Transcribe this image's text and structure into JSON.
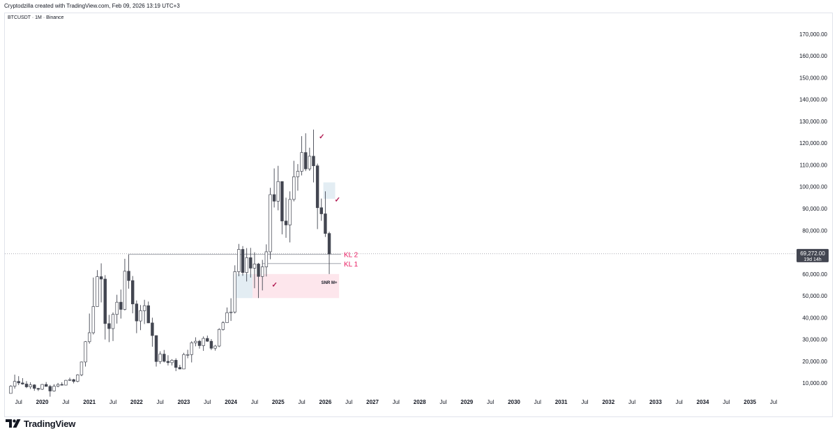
{
  "header": {
    "attribution": "Cryptodzilla created with TradingView.com, Feb 09, 2026 13:19 UTC+3",
    "symbol": "BTCUSDT · 1M · Binance"
  },
  "footer": {
    "brand": "TradingView",
    "logo_icon": "tradingview-logo-icon"
  },
  "colors": {
    "bull_body": "#ffffff",
    "bear_body": "#434651",
    "wick": "#434651",
    "zone_pink": "#fde6ec",
    "zone_blue": "#e3edf3",
    "kl_label": "#e91e63",
    "level_line": "#9598a1",
    "price_tag_bg": "#434651"
  },
  "price_axis": {
    "labels": [
      "170,000.00",
      "160,000.00",
      "150,000.00",
      "140,000.00",
      "130,000.00",
      "120,000.00",
      "110,000.00",
      "100,000.00",
      "90,000.00",
      "80,000.00",
      "60,000.00",
      "50,000.00",
      "40,000.00",
      "30,000.00",
      "20,000.00",
      "10,000.00"
    ],
    "current_price": "69,272.00",
    "countdown": "19d 14h"
  },
  "annotations": {
    "kl2": "KL 2",
    "kl1": "KL 1",
    "snr": "SNR M+",
    "check": "✓"
  },
  "chart_data": {
    "type": "candlestick",
    "ylim": [
      4000,
      176000
    ],
    "time_axis": {
      "start": "2019-04",
      "end": "2035-12",
      "labels": [
        {
          "t": "2019-07",
          "label": "Jul"
        },
        {
          "t": "2020-01",
          "label": "2020"
        },
        {
          "t": "2020-07",
          "label": "Jul"
        },
        {
          "t": "2021-01",
          "label": "2021"
        },
        {
          "t": "2021-07",
          "label": "Jul"
        },
        {
          "t": "2022-01",
          "label": "2022"
        },
        {
          "t": "2022-07",
          "label": "Jul"
        },
        {
          "t": "2023-01",
          "label": "2023"
        },
        {
          "t": "2023-07",
          "label": "Jul"
        },
        {
          "t": "2024-01",
          "label": "2024"
        },
        {
          "t": "2024-07",
          "label": "Jul"
        },
        {
          "t": "2025-01",
          "label": "2025"
        },
        {
          "t": "2025-07",
          "label": "Jul"
        },
        {
          "t": "2026-01",
          "label": "2026"
        },
        {
          "t": "2026-07",
          "label": "Jul"
        },
        {
          "t": "2027-01",
          "label": "2027"
        },
        {
          "t": "2027-07",
          "label": "Jul"
        },
        {
          "t": "2028-01",
          "label": "2028"
        },
        {
          "t": "2028-07",
          "label": "Jul"
        },
        {
          "t": "2029-01",
          "label": "2029"
        },
        {
          "t": "2029-07",
          "label": "Jul"
        },
        {
          "t": "2030-01",
          "label": "2030"
        },
        {
          "t": "2030-07",
          "label": "Jul"
        },
        {
          "t": "2031-01",
          "label": "2031"
        },
        {
          "t": "2031-07",
          "label": "Jul"
        },
        {
          "t": "2032-01",
          "label": "2032"
        },
        {
          "t": "2032-07",
          "label": "Jul"
        },
        {
          "t": "2033-01",
          "label": "2033"
        },
        {
          "t": "2033-07",
          "label": "Jul"
        },
        {
          "t": "2034-01",
          "label": "2034"
        },
        {
          "t": "2034-07",
          "label": "Jul"
        },
        {
          "t": "2035-01",
          "label": "2035"
        },
        {
          "t": "2035-07",
          "label": "Jul"
        }
      ]
    },
    "candles": [
      {
        "t": "2019-05",
        "o": 5300,
        "h": 9000,
        "l": 5300,
        "c": 8600
      },
      {
        "t": "2019-06",
        "o": 8600,
        "h": 13900,
        "l": 7500,
        "c": 10800
      },
      {
        "t": "2019-07",
        "o": 10800,
        "h": 13200,
        "l": 9100,
        "c": 10100
      },
      {
        "t": "2019-08",
        "o": 10100,
        "h": 12300,
        "l": 9300,
        "c": 9600
      },
      {
        "t": "2019-09",
        "o": 9600,
        "h": 10900,
        "l": 7700,
        "c": 8300
      },
      {
        "t": "2019-10",
        "o": 8300,
        "h": 10400,
        "l": 7300,
        "c": 9200
      },
      {
        "t": "2019-11",
        "o": 9200,
        "h": 9500,
        "l": 6500,
        "c": 7600
      },
      {
        "t": "2019-12",
        "o": 7600,
        "h": 7800,
        "l": 6400,
        "c": 7200
      },
      {
        "t": "2020-01",
        "o": 7200,
        "h": 9600,
        "l": 6900,
        "c": 9400
      },
      {
        "t": "2020-02",
        "o": 9400,
        "h": 10500,
        "l": 8400,
        "c": 8500
      },
      {
        "t": "2020-03",
        "o": 8500,
        "h": 9200,
        "l": 3800,
        "c": 6400
      },
      {
        "t": "2020-04",
        "o": 6400,
        "h": 9500,
        "l": 6100,
        "c": 8600
      },
      {
        "t": "2020-05",
        "o": 8600,
        "h": 10100,
        "l": 8100,
        "c": 9400
      },
      {
        "t": "2020-06",
        "o": 9400,
        "h": 10400,
        "l": 8900,
        "c": 9100
      },
      {
        "t": "2020-07",
        "o": 9100,
        "h": 11500,
        "l": 9000,
        "c": 11300
      },
      {
        "t": "2020-08",
        "o": 11300,
        "h": 12500,
        "l": 11000,
        "c": 11600
      },
      {
        "t": "2020-09",
        "o": 11600,
        "h": 12000,
        "l": 9900,
        "c": 10800
      },
      {
        "t": "2020-10",
        "o": 10800,
        "h": 14100,
        "l": 10400,
        "c": 13800
      },
      {
        "t": "2020-11",
        "o": 13800,
        "h": 19900,
        "l": 13200,
        "c": 19700
      },
      {
        "t": "2020-12",
        "o": 19700,
        "h": 29300,
        "l": 17600,
        "c": 29000
      },
      {
        "t": "2021-01",
        "o": 29000,
        "h": 41900,
        "l": 28100,
        "c": 33100
      },
      {
        "t": "2021-02",
        "o": 33100,
        "h": 58400,
        "l": 32300,
        "c": 45100
      },
      {
        "t": "2021-03",
        "o": 45100,
        "h": 61800,
        "l": 45000,
        "c": 58800
      },
      {
        "t": "2021-04",
        "o": 58800,
        "h": 64900,
        "l": 47000,
        "c": 57700
      },
      {
        "t": "2021-05",
        "o": 57700,
        "h": 59500,
        "l": 30000,
        "c": 37300
      },
      {
        "t": "2021-06",
        "o": 37300,
        "h": 41300,
        "l": 28800,
        "c": 35000
      },
      {
        "t": "2021-07",
        "o": 35000,
        "h": 42400,
        "l": 29300,
        "c": 41500
      },
      {
        "t": "2021-08",
        "o": 41500,
        "h": 50500,
        "l": 37300,
        "c": 47100
      },
      {
        "t": "2021-09",
        "o": 47100,
        "h": 52900,
        "l": 39600,
        "c": 43800
      },
      {
        "t": "2021-10",
        "o": 43800,
        "h": 67000,
        "l": 43300,
        "c": 61300
      },
      {
        "t": "2021-11",
        "o": 61300,
        "h": 69000,
        "l": 53300,
        "c": 57000
      },
      {
        "t": "2021-12",
        "o": 57000,
        "h": 59100,
        "l": 42000,
        "c": 46300
      },
      {
        "t": "2022-01",
        "o": 46300,
        "h": 47900,
        "l": 32900,
        "c": 38500
      },
      {
        "t": "2022-02",
        "o": 38500,
        "h": 45800,
        "l": 34300,
        "c": 43200
      },
      {
        "t": "2022-03",
        "o": 43200,
        "h": 48200,
        "l": 37100,
        "c": 45500
      },
      {
        "t": "2022-04",
        "o": 45500,
        "h": 47400,
        "l": 37600,
        "c": 37600
      },
      {
        "t": "2022-05",
        "o": 37600,
        "h": 40000,
        "l": 26700,
        "c": 31800
      },
      {
        "t": "2022-06",
        "o": 31800,
        "h": 31900,
        "l": 17600,
        "c": 19900
      },
      {
        "t": "2022-07",
        "o": 19900,
        "h": 24600,
        "l": 18800,
        "c": 23300
      },
      {
        "t": "2022-08",
        "o": 23300,
        "h": 25200,
        "l": 19500,
        "c": 20000
      },
      {
        "t": "2022-09",
        "o": 20000,
        "h": 22800,
        "l": 18100,
        "c": 19400
      },
      {
        "t": "2022-10",
        "o": 19400,
        "h": 21000,
        "l": 18100,
        "c": 20500
      },
      {
        "t": "2022-11",
        "o": 20500,
        "h": 21400,
        "l": 15500,
        "c": 17200
      },
      {
        "t": "2022-12",
        "o": 17200,
        "h": 18400,
        "l": 16300,
        "c": 16500
      },
      {
        "t": "2023-01",
        "o": 16500,
        "h": 23900,
        "l": 16500,
        "c": 23100
      },
      {
        "t": "2023-02",
        "o": 23100,
        "h": 25300,
        "l": 21400,
        "c": 23100
      },
      {
        "t": "2023-03",
        "o": 23100,
        "h": 29200,
        "l": 19500,
        "c": 28500
      },
      {
        "t": "2023-04",
        "o": 28500,
        "h": 31000,
        "l": 26900,
        "c": 29200
      },
      {
        "t": "2023-05",
        "o": 29200,
        "h": 29800,
        "l": 25800,
        "c": 27200
      },
      {
        "t": "2023-06",
        "o": 27200,
        "h": 31400,
        "l": 24800,
        "c": 30500
      },
      {
        "t": "2023-07",
        "o": 30500,
        "h": 31800,
        "l": 28900,
        "c": 29200
      },
      {
        "t": "2023-08",
        "o": 29200,
        "h": 30200,
        "l": 25200,
        "c": 26000
      },
      {
        "t": "2023-09",
        "o": 26000,
        "h": 27500,
        "l": 24900,
        "c": 27000
      },
      {
        "t": "2023-10",
        "o": 27000,
        "h": 35200,
        "l": 26500,
        "c": 34600
      },
      {
        "t": "2023-11",
        "o": 34600,
        "h": 38400,
        "l": 34100,
        "c": 37700
      },
      {
        "t": "2023-12",
        "o": 37700,
        "h": 44700,
        "l": 37600,
        "c": 42300
      },
      {
        "t": "2024-01",
        "o": 42300,
        "h": 48900,
        "l": 38500,
        "c": 42600
      },
      {
        "t": "2024-02",
        "o": 42600,
        "h": 64000,
        "l": 41900,
        "c": 61100
      },
      {
        "t": "2024-03",
        "o": 61100,
        "h": 73800,
        "l": 59000,
        "c": 71300
      },
      {
        "t": "2024-04",
        "o": 71300,
        "h": 72800,
        "l": 59200,
        "c": 60700
      },
      {
        "t": "2024-05",
        "o": 60700,
        "h": 71900,
        "l": 56600,
        "c": 67500
      },
      {
        "t": "2024-06",
        "o": 67500,
        "h": 72000,
        "l": 58400,
        "c": 62700
      },
      {
        "t": "2024-07",
        "o": 62700,
        "h": 70000,
        "l": 53500,
        "c": 64600
      },
      {
        "t": "2024-08",
        "o": 64600,
        "h": 65100,
        "l": 49000,
        "c": 58900
      },
      {
        "t": "2024-09",
        "o": 58900,
        "h": 66500,
        "l": 52500,
        "c": 63300
      },
      {
        "t": "2024-10",
        "o": 63300,
        "h": 73600,
        "l": 58900,
        "c": 70200
      },
      {
        "t": "2024-11",
        "o": 70200,
        "h": 99500,
        "l": 66800,
        "c": 96400
      },
      {
        "t": "2024-12",
        "o": 96400,
        "h": 108400,
        "l": 90500,
        "c": 93400
      },
      {
        "t": "2025-01",
        "o": 93400,
        "h": 109600,
        "l": 89200,
        "c": 102400
      },
      {
        "t": "2025-02",
        "o": 102400,
        "h": 102500,
        "l": 78200,
        "c": 84300
      },
      {
        "t": "2025-03",
        "o": 84300,
        "h": 95000,
        "l": 76600,
        "c": 82500
      },
      {
        "t": "2025-04",
        "o": 82500,
        "h": 97900,
        "l": 74500,
        "c": 94200
      },
      {
        "t": "2025-05",
        "o": 94200,
        "h": 111900,
        "l": 93300,
        "c": 104600
      },
      {
        "t": "2025-06",
        "o": 104600,
        "h": 110400,
        "l": 98200,
        "c": 107100
      },
      {
        "t": "2025-07",
        "o": 107100,
        "h": 123200,
        "l": 105200,
        "c": 115700
      },
      {
        "t": "2025-08",
        "o": 115700,
        "h": 124500,
        "l": 107200,
        "c": 108200
      },
      {
        "t": "2025-09",
        "o": 108200,
        "h": 117900,
        "l": 107300,
        "c": 114000
      },
      {
        "t": "2025-10",
        "o": 114000,
        "h": 126200,
        "l": 102000,
        "c": 109600
      },
      {
        "t": "2025-11",
        "o": 109600,
        "h": 110600,
        "l": 80600,
        "c": 90400
      },
      {
        "t": "2025-12",
        "o": 90400,
        "h": 94600,
        "l": 84400,
        "c": 87600
      },
      {
        "t": "2026-01",
        "o": 87600,
        "h": 97900,
        "l": 77000,
        "c": 78600
      },
      {
        "t": "2026-02",
        "o": 78600,
        "h": 79400,
        "l": 60000,
        "c": 69272
      }
    ],
    "levels": [
      {
        "label": "KL 2",
        "price": 69000,
        "from": "2021-11"
      },
      {
        "label": "KL 1",
        "price": 64800,
        "from": "2024-09"
      }
    ],
    "current_price": 69272,
    "zones": [
      {
        "color": "pink",
        "from": "2024-07",
        "to": "2026-04",
        "top": 60000,
        "bottom": 49000
      },
      {
        "color": "blue",
        "from": "2024-02",
        "to": "2024-06",
        "top": 60000,
        "bottom": 49000
      },
      {
        "color": "blue",
        "from": "2026-01",
        "to": "2026-03",
        "top": 102000,
        "bottom": 94500
      }
    ],
    "checks": [
      {
        "t": "2025-11",
        "price": 123000
      },
      {
        "t": "2026-03",
        "price": 94000
      },
      {
        "t": "2024-11",
        "price": 55000
      }
    ]
  }
}
